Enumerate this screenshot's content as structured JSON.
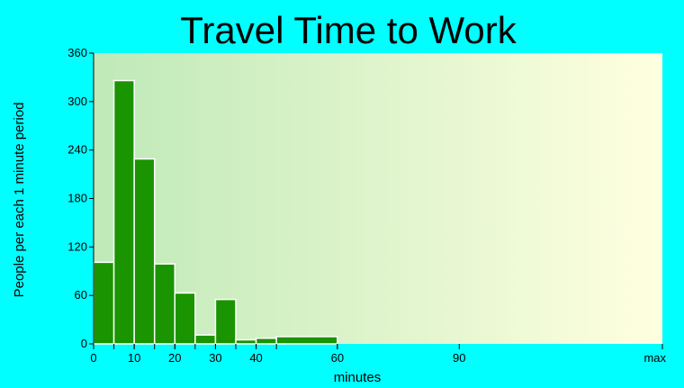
{
  "chart_data": {
    "type": "bar",
    "title": "Travel Time to Work",
    "xlabel": "minutes",
    "ylabel": "People per each 1 minute period",
    "ylim": [
      0,
      360
    ],
    "yticks": [
      "0",
      "60",
      "120",
      "180",
      "240",
      "300",
      "360"
    ],
    "xticks": [
      {
        "value": 0,
        "label": "0"
      },
      {
        "value": 10,
        "label": "10"
      },
      {
        "value": 20,
        "label": "20"
      },
      {
        "value": 30,
        "label": "30"
      },
      {
        "value": 40,
        "label": "40"
      },
      {
        "value": 60,
        "label": "60"
      },
      {
        "value": 90,
        "label": "90"
      },
      {
        "value": 140,
        "label": "max"
      }
    ],
    "bins": [
      {
        "from": 0,
        "to": 5,
        "value": 101
      },
      {
        "from": 5,
        "to": 10,
        "value": 326
      },
      {
        "from": 10,
        "to": 15,
        "value": 229
      },
      {
        "from": 15,
        "to": 20,
        "value": 99
      },
      {
        "from": 20,
        "to": 25,
        "value": 63
      },
      {
        "from": 25,
        "to": 30,
        "value": 11
      },
      {
        "from": 30,
        "to": 35,
        "value": 55
      },
      {
        "from": 35,
        "to": 40,
        "value": 5
      },
      {
        "from": 40,
        "to": 45,
        "value": 7
      },
      {
        "from": 45,
        "to": 60,
        "value": 9
      },
      {
        "from": 60,
        "to": 140,
        "value": 0
      }
    ],
    "bar_color": "#1a9400",
    "bar_edge_color": "#ffffff",
    "plot_background_start": "#bfe9b8",
    "plot_background_end": "#ffffe0",
    "page_background": "#00ffff",
    "grid": false
  }
}
